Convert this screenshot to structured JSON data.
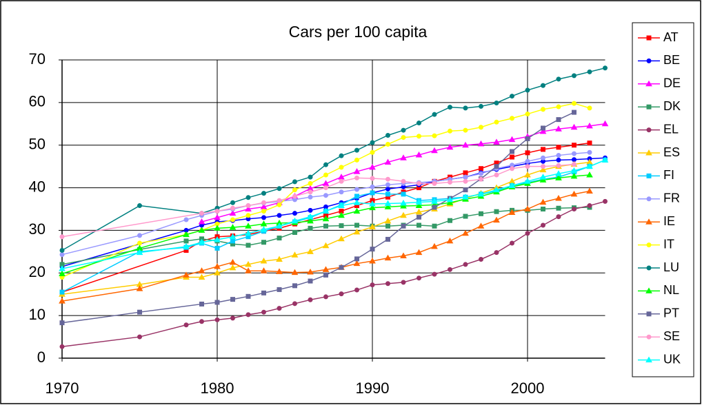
{
  "chart_data": {
    "type": "line",
    "title": "Cars per 100 capita",
    "xlim": [
      1970,
      2005
    ],
    "xticks": [
      1970,
      1980,
      1990,
      2000
    ],
    "ylim": [
      0,
      70
    ],
    "yticks": [
      0,
      10,
      20,
      30,
      40,
      50,
      60,
      70
    ],
    "grid": true,
    "legend": "right",
    "series": [
      {
        "name": "AT",
        "color": "#ff0000",
        "marker": "square",
        "x": [
          1970,
          1978,
          1979,
          1980,
          1981,
          1982,
          1983,
          1984,
          1985,
          1986,
          1987,
          1988,
          1989,
          1990,
          1991,
          1992,
          1993,
          1994,
          1995,
          1996,
          1997,
          1998,
          1999,
          2000,
          2001,
          2002,
          2003,
          2004
        ],
        "values": [
          15.5,
          25.3,
          27.5,
          28.5,
          28.7,
          29,
          29.8,
          30.5,
          31.5,
          32.5,
          33.5,
          34.5,
          35.8,
          37,
          37.8,
          39,
          40,
          41.5,
          42.5,
          43.5,
          44.5,
          45.8,
          47.2,
          48.2,
          49,
          49.5,
          50,
          50.5
        ]
      },
      {
        "name": "BE",
        "color": "#0000ff",
        "marker": "circle",
        "x": [
          1970,
          1978,
          1979,
          1980,
          1981,
          1982,
          1983,
          1984,
          1985,
          1986,
          1987,
          1988,
          1989,
          1990,
          1991,
          1992,
          1993,
          1994,
          1995,
          1996,
          1997,
          1998,
          1999,
          2000,
          2001,
          2002,
          2003,
          2004,
          2005
        ],
        "values": [
          21.5,
          30,
          31.2,
          32,
          32.3,
          32.7,
          33,
          33.5,
          34,
          34.7,
          35.5,
          36.5,
          37.5,
          38.8,
          39.7,
          40.2,
          40.7,
          41.5,
          42,
          42.5,
          43.5,
          44.3,
          45,
          45.7,
          46.2,
          46.5,
          46.6,
          46.8,
          47
        ]
      },
      {
        "name": "DE",
        "color": "#ff00ff",
        "marker": "triangle",
        "x": [
          1979,
          1980,
          1981,
          1982,
          1983,
          1984,
          1985,
          1986,
          1987,
          1988,
          1989,
          1990,
          1991,
          1992,
          1993,
          1994,
          1995,
          1996,
          1997,
          1998,
          1999,
          2000,
          2001,
          2002,
          2003,
          2004,
          2005
        ],
        "values": [
          32,
          33,
          34,
          35,
          35.5,
          36.5,
          38,
          39.8,
          41,
          42.5,
          43.8,
          44.8,
          46,
          47,
          47.7,
          48.7,
          49.5,
          50,
          50.3,
          50.7,
          51.3,
          52,
          53.2,
          53.8,
          54.2,
          54.5,
          55
        ]
      },
      {
        "name": "DK",
        "color": "#339966",
        "marker": "square",
        "x": [
          1970,
          1975,
          1978,
          1979,
          1980,
          1981,
          1982,
          1983,
          1984,
          1985,
          1986,
          1987,
          1988,
          1989,
          1990,
          1991,
          1992,
          1993,
          1994,
          1995,
          1996,
          1997,
          1998,
          1999,
          2000,
          2001,
          2002,
          2003,
          2004
        ],
        "values": [
          22,
          25.5,
          27.5,
          28,
          27.5,
          26.8,
          26.5,
          27.2,
          28.2,
          29.5,
          30.5,
          31,
          31.1,
          31.2,
          31,
          31,
          31.2,
          31.2,
          31,
          32.3,
          33.3,
          33.9,
          34.4,
          34.7,
          34.7,
          35,
          35.2,
          35.3,
          35.4
        ]
      },
      {
        "name": "EL",
        "color": "#993366",
        "marker": "circle",
        "x": [
          1970,
          1975,
          1978,
          1979,
          1980,
          1981,
          1982,
          1983,
          1984,
          1985,
          1986,
          1987,
          1988,
          1989,
          1990,
          1991,
          1992,
          1993,
          1994,
          1995,
          1996,
          1997,
          1998,
          1999,
          2000,
          2001,
          2002,
          2003,
          2004,
          2005
        ],
        "values": [
          2.7,
          5,
          7.8,
          8.6,
          9,
          9.4,
          10.2,
          10.8,
          11.7,
          12.8,
          13.7,
          14.4,
          15.1,
          16,
          17.2,
          17.5,
          17.8,
          18.8,
          19.7,
          20.8,
          22,
          23.2,
          24.8,
          27,
          29.3,
          31.2,
          33.2,
          35,
          35.8,
          36.8
        ]
      },
      {
        "name": "ES",
        "color": "#ffcc00",
        "marker": "triangle",
        "x": [
          1970,
          1975,
          1978,
          1979,
          1980,
          1981,
          1982,
          1983,
          1984,
          1985,
          1986,
          1987,
          1988,
          1989,
          1990,
          1991,
          1992,
          1993,
          1994,
          1995,
          1996,
          1997,
          1998,
          1999,
          2000,
          2001,
          2002,
          2003,
          2004
        ],
        "values": [
          15,
          17.3,
          19,
          19,
          20,
          21.2,
          22,
          22.8,
          23.2,
          24.2,
          25,
          26.4,
          28,
          29.6,
          30.8,
          32.2,
          33.5,
          34.3,
          35,
          36.2,
          37.5,
          38.7,
          40,
          41.5,
          43,
          44.2,
          45,
          45.5,
          46
        ]
      },
      {
        "name": "FI",
        "color": "#00ccff",
        "marker": "square",
        "x": [
          1970,
          1975,
          1978,
          1979,
          1980,
          1981,
          1982,
          1983,
          1984,
          1985,
          1986,
          1987,
          1988,
          1989,
          1990,
          1991,
          1992,
          1993,
          1994,
          1995,
          1996,
          1997,
          1998,
          1999,
          2000,
          2001,
          2002,
          2003,
          2004,
          2005
        ],
        "values": [
          15.5,
          25,
          26,
          27,
          25.8,
          27.5,
          28.5,
          29.8,
          31,
          32,
          33,
          34.5,
          36,
          38,
          38.8,
          38.5,
          38.5,
          37,
          37.2,
          37.5,
          37.8,
          38.5,
          39.2,
          40.5,
          41.2,
          42,
          42.5,
          43.7,
          45,
          46.5
        ]
      },
      {
        "name": "FR",
        "color": "#9999ff",
        "marker": "circle",
        "x": [
          1970,
          1975,
          1978,
          1979,
          1980,
          1981,
          1982,
          1983,
          1984,
          1985,
          1986,
          1987,
          1988,
          1989,
          1990,
          1991,
          1992,
          1993,
          1994,
          1995,
          1996,
          1997,
          1998,
          1999,
          2000,
          2001,
          2002,
          2003,
          2004
        ],
        "values": [
          24.3,
          28.8,
          32.5,
          33.5,
          34.5,
          35,
          35.8,
          36.4,
          36.8,
          37.2,
          37.8,
          38.2,
          39,
          39.6,
          40.2,
          40.7,
          41,
          41.2,
          41.5,
          42,
          42.5,
          43.3,
          44.5,
          45.3,
          46.2,
          47,
          47.6,
          48,
          48.3
        ]
      },
      {
        "name": "IE",
        "color": "#ff6600",
        "marker": "triangle",
        "x": [
          1970,
          1975,
          1978,
          1979,
          1980,
          1981,
          1982,
          1983,
          1984,
          1985,
          1986,
          1987,
          1988,
          1989,
          1990,
          1991,
          1992,
          1993,
          1994,
          1995,
          1996,
          1997,
          1998,
          1999,
          2000,
          2001,
          2002,
          2003,
          2004
        ],
        "values": [
          13.4,
          16.3,
          19.5,
          20.5,
          21.5,
          22.5,
          20.5,
          20.5,
          20.3,
          20.1,
          20.2,
          20.8,
          21.3,
          22.2,
          22.8,
          23.5,
          24,
          24.8,
          26.2,
          27.5,
          29.3,
          31,
          32.4,
          34.2,
          35,
          36.6,
          37.5,
          38.5,
          39.2
        ]
      },
      {
        "name": "IT",
        "color": "#ffff00",
        "marker": "circle",
        "x": [
          1970,
          1975,
          1978,
          1979,
          1980,
          1981,
          1982,
          1983,
          1984,
          1985,
          1986,
          1987,
          1988,
          1989,
          1990,
          1991,
          1992,
          1993,
          1994,
          1995,
          1996,
          1997,
          1998,
          1999,
          2000,
          2001,
          2002,
          2003,
          2004
        ],
        "values": [
          19,
          27,
          29,
          30,
          31.5,
          32.5,
          33.5,
          34.5,
          36,
          39.5,
          41,
          43,
          44.8,
          46.5,
          48.3,
          50.2,
          51.8,
          52.1,
          52.2,
          53.3,
          53.5,
          54.2,
          55.4,
          56.3,
          57.3,
          58.4,
          59,
          59.8,
          58.7
        ]
      },
      {
        "name": "LU",
        "color": "#008080",
        "marker": "circle",
        "x": [
          1970,
          1975,
          1979,
          1980,
          1981,
          1982,
          1983,
          1984,
          1985,
          1986,
          1987,
          1988,
          1989,
          1990,
          1991,
          1992,
          1993,
          1994,
          1995,
          1996,
          1997,
          1998,
          1999,
          2000,
          2001,
          2002,
          2003,
          2004,
          2005
        ],
        "values": [
          25.3,
          35.8,
          34,
          35.2,
          36.5,
          37.7,
          38.7,
          39.8,
          41.4,
          42.5,
          45.4,
          47.5,
          48.8,
          50.6,
          52.3,
          53.5,
          55.2,
          57.2,
          58.9,
          58.7,
          59.1,
          59.9,
          61.5,
          62.9,
          64,
          65.5,
          66.3,
          67.2,
          68.1
        ]
      },
      {
        "name": "NL",
        "color": "#00ff00",
        "marker": "triangle",
        "x": [
          1970,
          1975,
          1978,
          1979,
          1980,
          1981,
          1982,
          1983,
          1984,
          1985,
          1986,
          1987,
          1988,
          1989,
          1990,
          1991,
          1992,
          1993,
          1994,
          1995,
          1996,
          1997,
          1998,
          1999,
          2000,
          2001,
          2002,
          2003,
          2004
        ],
        "values": [
          19.8,
          25.8,
          29,
          30,
          30.5,
          30.7,
          31,
          31.5,
          31.7,
          31.8,
          32.2,
          32.7,
          33.5,
          34.5,
          35.3,
          35.5,
          35.7,
          35.8,
          36,
          36.5,
          37.3,
          38,
          39,
          40.2,
          41,
          41.8,
          42.3,
          42.7,
          43
        ]
      },
      {
        "name": "PT",
        "color": "#666699",
        "marker": "square",
        "x": [
          1970,
          1975,
          1979,
          1980,
          1981,
          1982,
          1983,
          1984,
          1985,
          1986,
          1987,
          1988,
          1989,
          1990,
          1991,
          1992,
          1993,
          1994,
          1995,
          1996,
          1997,
          1998,
          1999,
          2000,
          2001,
          2002,
          2003
        ],
        "values": [
          8.3,
          10.8,
          12.7,
          13.1,
          13.8,
          14.5,
          15.3,
          16.1,
          17,
          18.1,
          19.5,
          21.3,
          23.3,
          25.6,
          27.9,
          31,
          33.1,
          35.4,
          37.5,
          39.5,
          42.1,
          45,
          48.5,
          51.5,
          54,
          56,
          57.7
        ]
      },
      {
        "name": "SE",
        "color": "#ff99cc",
        "marker": "circle",
        "x": [
          1970,
          1979,
          1980,
          1981,
          1982,
          1983,
          1984,
          1985,
          1986,
          1987,
          1988,
          1989,
          1990,
          1991,
          1992,
          1993,
          1994,
          1995,
          1996,
          1997,
          1998,
          1999,
          2000,
          2001,
          2002,
          2003
        ],
        "values": [
          28.5,
          34,
          34.5,
          35.2,
          35.8,
          36.5,
          37,
          38,
          39,
          40,
          41.5,
          42.3,
          42.2,
          42,
          41.5,
          41,
          41,
          41.3,
          41.5,
          42,
          43,
          44.5,
          45,
          45,
          45.2,
          45.5
        ]
      },
      {
        "name": "UK",
        "color": "#00ffff",
        "marker": "triangle",
        "x": [
          1970,
          1975,
          1978,
          1979,
          1980,
          1981,
          1982,
          1983,
          1984,
          1985,
          1986,
          1987,
          1988,
          1989,
          1990,
          1991,
          1992,
          1993,
          1994,
          1995,
          1996,
          1997,
          1998,
          1999,
          2000,
          2001,
          2002,
          2003,
          2004,
          2005
        ],
        "values": [
          21,
          24.8,
          26.2,
          27.2,
          27.8,
          28.5,
          29.3,
          30.2,
          31,
          32.2,
          33.2,
          34.5,
          35.8,
          36.5,
          36.2,
          36.3,
          36.4,
          36.6,
          36.8,
          37.2,
          37.8,
          38.5,
          39.5,
          40.5,
          41.5,
          42.5,
          43.3,
          44,
          45,
          46.5
        ]
      }
    ]
  }
}
